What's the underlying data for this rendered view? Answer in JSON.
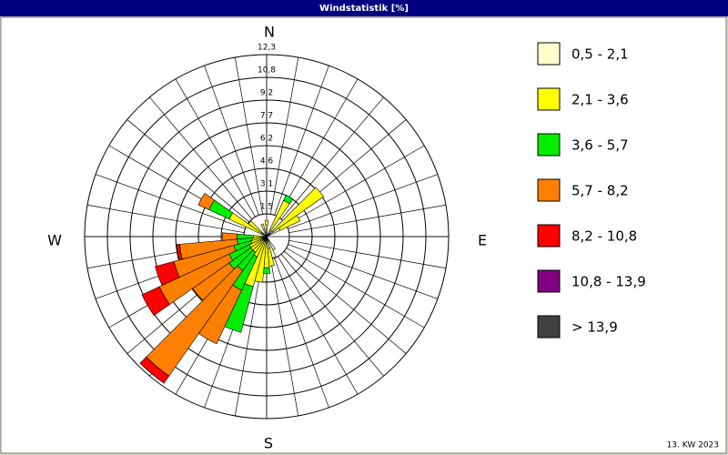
{
  "chart_data": {
    "type": "windrose",
    "title": "Windstatistik [%]",
    "footer": "13. KW 2023",
    "compass_labels": [
      "N",
      "E",
      "S",
      "W"
    ],
    "x": [
      0,
      30,
      50,
      60,
      150,
      160,
      170,
      180,
      190,
      200,
      210,
      220,
      230,
      240,
      250,
      260,
      270,
      300,
      310,
      340
    ],
    "ylim": [
      0,
      12.3
    ],
    "yticks": [
      {
        "value": 1.5375,
        "label": "1,5"
      },
      {
        "value": 3.075,
        "label": "3,1"
      },
      {
        "value": 4.6125,
        "label": "4,6"
      },
      {
        "value": 6.15,
        "label": "6,2"
      },
      {
        "value": 7.6875,
        "label": "7,7"
      },
      {
        "value": 9.225,
        "label": "9,2"
      },
      {
        "value": 10.7625,
        "label": "10,8"
      },
      {
        "value": 12.3,
        "label": "12,3"
      }
    ],
    "series": [
      {
        "name": "0,5 - 2,1",
        "color": "#ffffcc",
        "values": [
          0.8,
          0.5,
          0.5,
          1.0,
          1.0,
          1.5,
          0.8,
          0.5,
          0.3,
          0.3,
          0.3,
          0.3,
          0.3,
          0.3,
          0.3,
          0.3,
          0.3,
          0.3,
          0.4,
          0.5
        ]
      },
      {
        "name": "2,1 - 3,6",
        "color": "#ffff00",
        "values": [
          0.3,
          2.2,
          4.2,
          1.5,
          0,
          0,
          1.2,
          1.6,
          2.8,
          3.2,
          1.2,
          1.0,
          1.0,
          1.0,
          0.8,
          0.7,
          0.6,
          2.5,
          1.1,
          0.4
        ]
      },
      {
        "name": "3,6 - 5,7",
        "color": "#00ee00",
        "values": [
          0,
          0.4,
          0,
          0,
          0,
          0,
          0,
          0.4,
          0,
          3.2,
          2.5,
          1.5,
          1.8,
          1.5,
          1.2,
          1.0,
          1.1,
          1.5,
          0,
          0
        ]
      },
      {
        "name": "5,7 - 8,2",
        "color": "#ff8000",
        "values": [
          0,
          0,
          0,
          0,
          0,
          0,
          0,
          0,
          0,
          0,
          4.0,
          8.7,
          3.0,
          5.2,
          4.2,
          3.9,
          1.0,
          0.8,
          0,
          0
        ]
      },
      {
        "name": "8,2 - 10,8",
        "color": "#ff0000",
        "values": [
          0,
          0,
          0,
          0,
          0,
          0,
          0,
          0,
          0,
          0,
          0,
          0.6,
          0,
          1.3,
          1.3,
          0.2,
          0,
          0,
          0,
          0
        ]
      },
      {
        "name": "10,8 - 13,9",
        "color": "#800080",
        "values": [
          0,
          0,
          0,
          0,
          0,
          0,
          0,
          0,
          0,
          0,
          0,
          0,
          0,
          0,
          0,
          0,
          0,
          0,
          0,
          0
        ]
      },
      {
        "name": "> 13,9",
        "color": "#404040",
        "values": [
          0,
          0,
          0,
          0,
          0,
          0,
          0,
          0,
          0,
          0,
          0,
          0,
          0,
          0,
          0,
          0,
          0,
          0,
          0,
          0
        ]
      }
    ]
  }
}
